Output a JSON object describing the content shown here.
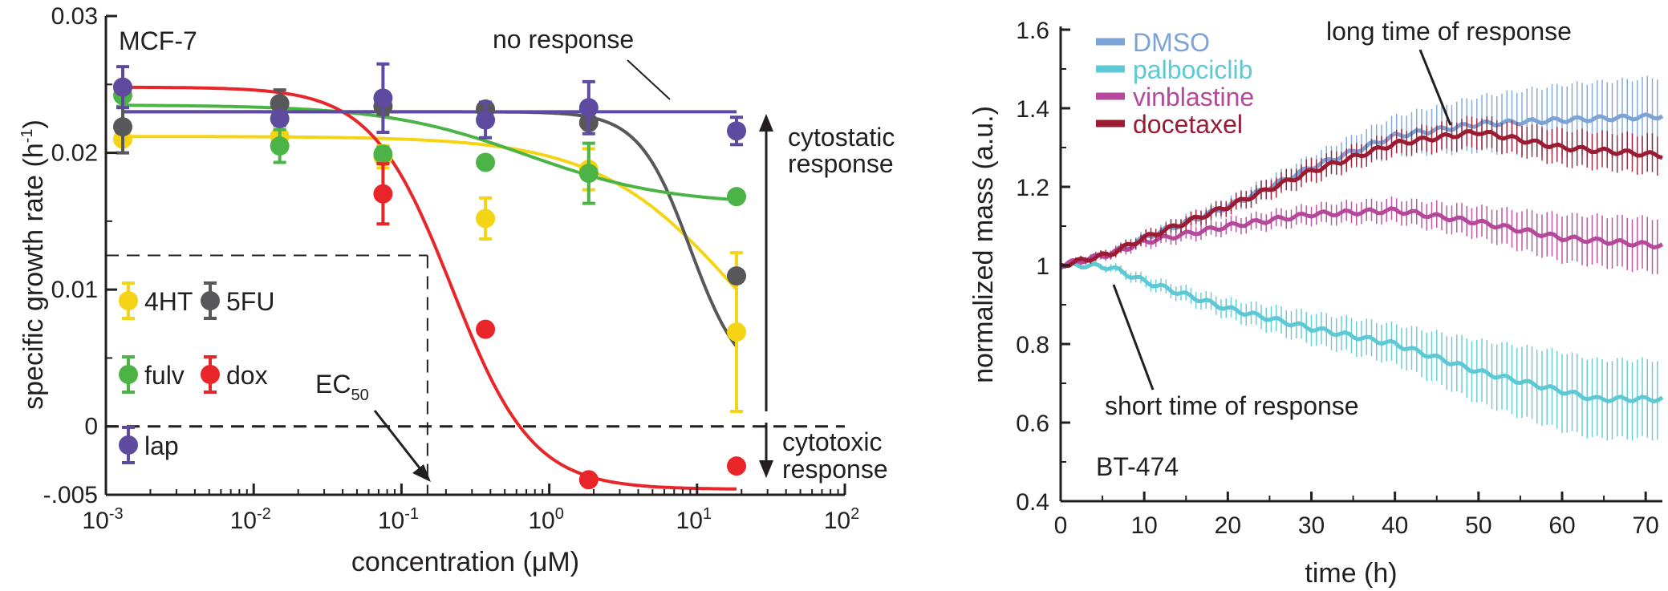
{
  "chart_data": [
    {
      "type": "scatter",
      "title": "",
      "cell_line": "MCF-7",
      "xlabel": "concentration (μM)",
      "ylabel_main": "specific growth rate (h",
      "ylabel_sup": "-1",
      "ylabel_close": ")",
      "x_scale": "log",
      "xlim": [
        0.001,
        100
      ],
      "ylim": [
        -0.005,
        0.03
      ],
      "x_ticks": [
        {
          "v": 0.001,
          "base": "10",
          "exp": "-3"
        },
        {
          "v": 0.01,
          "base": "10",
          "exp": "-2"
        },
        {
          "v": 0.1,
          "base": "10",
          "exp": "-1"
        },
        {
          "v": 1,
          "base": "10",
          "exp": "0"
        },
        {
          "v": 10,
          "base": "10",
          "exp": "1"
        },
        {
          "v": 100,
          "base": "10",
          "exp": "2"
        }
      ],
      "y_ticks": [
        {
          "v": 0.03,
          "label": "0.03"
        },
        {
          "v": 0.02,
          "label": "0.02"
        },
        {
          "v": 0.01,
          "label": "0.01"
        },
        {
          "v": 0,
          "label": "0"
        },
        {
          "v": -0.005,
          "label": "-.005"
        }
      ],
      "zero_line": true,
      "ec50": {
        "x": 0.15,
        "y": 0.0125,
        "label": "EC",
        "label_sub": "50"
      },
      "annotations": {
        "no_response": "no response",
        "cytostatic_1": "cytostatic",
        "cytostatic_2": "response",
        "cytotoxic_1": "cytotoxic",
        "cytotoxic_2": "response"
      },
      "series": [
        {
          "name": "4HT",
          "color": "#f5d416",
          "x": [
            0.0013,
            0.015,
            0.075,
            0.37,
            1.85,
            18.5
          ],
          "y": [
            0.021,
            0.0212,
            0.0197,
            0.0152,
            0.0188,
            0.0069
          ],
          "err": [
            0.0004,
            0.0004,
            0.0008,
            0.0015,
            0.0015,
            0.0058
          ],
          "fit": {
            "top": 0.0212,
            "bottom": -0.002,
            "ec50": 20,
            "hill": 0.9
          }
        },
        {
          "name": "5FU",
          "color": "#58585a",
          "x": [
            0.0013,
            0.015,
            0.075,
            0.37,
            1.85,
            18.5
          ],
          "y": [
            0.0219,
            0.0236,
            0.0234,
            0.0232,
            0.0222,
            0.011
          ],
          "err": [
            0.0019,
            0.001,
            0.0006,
            0.0004,
            0.0004,
            0.0003
          ],
          "fit": {
            "top": 0.023,
            "bottom": 0.003,
            "ec50": 9,
            "hill": 2.5
          }
        },
        {
          "name": "fulv",
          "color": "#4cb447",
          "x": [
            0.0013,
            0.015,
            0.075,
            0.37,
            1.85,
            18.5
          ],
          "y": [
            0.0242,
            0.0205,
            0.0199,
            0.0193,
            0.0185,
            0.0168
          ],
          "err": [
            0.0008,
            0.0012,
            0.0005,
            0.0004,
            0.0022,
            0.0003
          ],
          "fit": {
            "top": 0.0235,
            "bottom": 0.0162,
            "ec50": 0.7,
            "hill": 0.9
          }
        },
        {
          "name": "dox",
          "color": "#e8262a",
          "x": [
            0.0013,
            0.075,
            0.37,
            1.85,
            18.5
          ],
          "y": [
            0.0248,
            0.017,
            0.0071,
            -0.0039,
            -0.0029
          ],
          "err": [
            0.0003,
            0.0022,
            0.0003,
            0.0002,
            0.0002
          ],
          "fit": {
            "top": 0.0248,
            "bottom": -0.0046,
            "ec50": 0.22,
            "hill": 1.6
          }
        },
        {
          "name": "lap",
          "color": "#5e4a9e",
          "x": [
            0.0013,
            0.015,
            0.075,
            0.37,
            1.85,
            18.5
          ],
          "y": [
            0.0248,
            0.0225,
            0.024,
            0.0224,
            0.0233,
            0.0216
          ],
          "err": [
            0.0015,
            0.0005,
            0.0025,
            0.0013,
            0.0019,
            0.001
          ],
          "fit": {
            "top": 0.023,
            "bottom": 0.023,
            "ec50": 1,
            "hill": 1
          }
        }
      ],
      "legend_order": [
        "4HT",
        "5FU",
        "fulv",
        "dox",
        "lap"
      ]
    },
    {
      "type": "line",
      "title": "",
      "cell_line": "BT-474",
      "xlabel": "time (h)",
      "ylabel": "normalized mass (a.u.)",
      "xlim": [
        0,
        72
      ],
      "ylim": [
        0.4,
        1.6
      ],
      "x_ticks": [
        0,
        10,
        20,
        30,
        40,
        50,
        60,
        70
      ],
      "y_ticks": [
        {
          "v": 1.6,
          "label": "1.6"
        },
        {
          "v": 1.4,
          "label": "1.4"
        },
        {
          "v": 1.2,
          "label": "1.2"
        },
        {
          "v": 1.0,
          "label": "1"
        },
        {
          "v": 0.8,
          "label": "0.8"
        },
        {
          "v": 0.6,
          "label": "0.6"
        },
        {
          "v": 0.4,
          "label": "0.4"
        }
      ],
      "annotations": {
        "long": "long time of response",
        "short": "short time of response"
      },
      "series": [
        {
          "name": "DMSO",
          "color": "#7ba3d6",
          "t": [
            0,
            6,
            10,
            20,
            30,
            40,
            50,
            60,
            72
          ],
          "mean": [
            1.0,
            1.03,
            1.07,
            1.15,
            1.25,
            1.33,
            1.36,
            1.37,
            1.38
          ],
          "err": [
            0.005,
            0.01,
            0.015,
            0.02,
            0.03,
            0.05,
            0.07,
            0.09,
            0.1
          ]
        },
        {
          "name": "palbociclib",
          "color": "#5dc9d4",
          "t": [
            0,
            3,
            6,
            10,
            20,
            30,
            40,
            50,
            60,
            64,
            72
          ],
          "mean": [
            1.0,
            1.0,
            0.995,
            0.96,
            0.89,
            0.84,
            0.8,
            0.73,
            0.68,
            0.66,
            0.66
          ],
          "err": [
            0.005,
            0.005,
            0.01,
            0.015,
            0.025,
            0.04,
            0.05,
            0.08,
            0.1,
            0.1,
            0.1
          ]
        },
        {
          "name": "vinblastine",
          "color": "#b5489a",
          "t": [
            0,
            6,
            10,
            20,
            30,
            40,
            50,
            60,
            72
          ],
          "mean": [
            1.0,
            1.03,
            1.06,
            1.1,
            1.13,
            1.14,
            1.11,
            1.07,
            1.05
          ],
          "err": [
            0.005,
            0.01,
            0.015,
            0.02,
            0.025,
            0.03,
            0.04,
            0.06,
            0.07
          ]
        },
        {
          "name": "docetaxel",
          "color": "#9a1b32",
          "t": [
            0,
            6,
            10,
            20,
            30,
            40,
            50,
            55,
            60,
            72
          ],
          "mean": [
            1.0,
            1.03,
            1.07,
            1.15,
            1.24,
            1.31,
            1.34,
            1.32,
            1.3,
            1.28
          ],
          "err": [
            0.005,
            0.01,
            0.015,
            0.02,
            0.03,
            0.03,
            0.04,
            0.04,
            0.045,
            0.05
          ]
        }
      ]
    }
  ]
}
